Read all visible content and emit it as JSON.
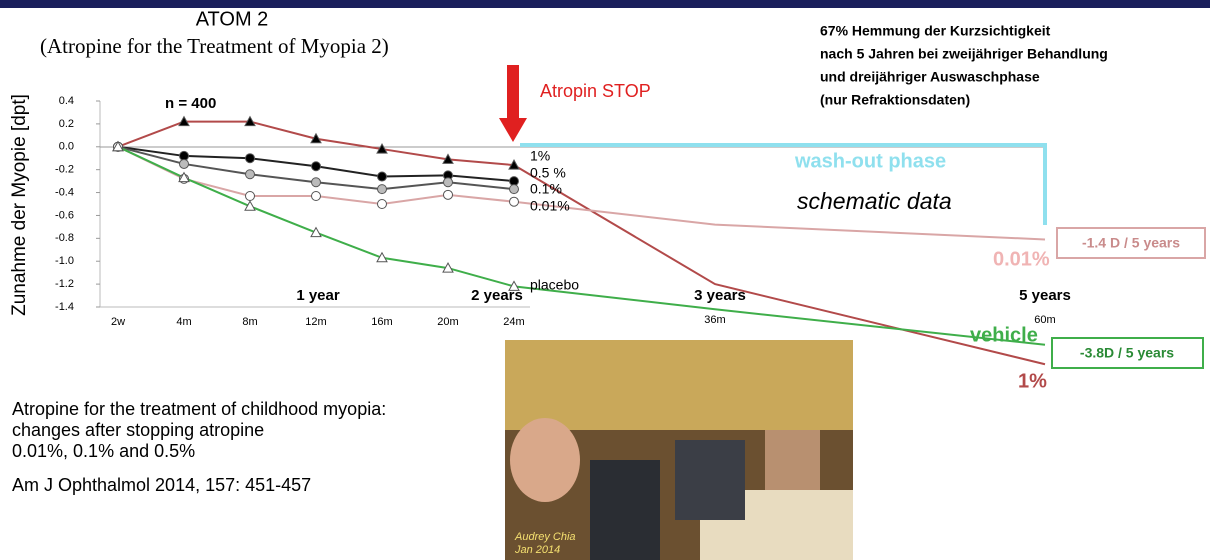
{
  "slide": {
    "title": "ATOM 2",
    "subtitle": "(Atropine for the Treatment of Myopia 2)",
    "summary": [
      "67% Hemmung der Kurzsichtigkeit",
      "nach 5 Jahren bei zweijähriger Behandlung",
      "und dreijähriger Auswaschphase",
      "(nur Refraktionsdaten)"
    ],
    "citation": [
      "Atropine for the treatment of childhood myopia:",
      "changes after stopping atropine",
      "0.01%, 0.1% and 0.5%"
    ],
    "reference": "Am J Ophthalmol 2014, 157: 451-457",
    "photo_caption": [
      "Audrey Chia",
      "Jan 2014"
    ]
  },
  "chart_data": {
    "type": "line",
    "y_label": "Zunahme der Myopie [dpt]",
    "categories": [
      "2w",
      "4m",
      "8m",
      "12m",
      "16m",
      "20m",
      "24m",
      "36m",
      "60m"
    ],
    "ylim": [
      -1.4,
      0.4
    ],
    "yticks": [
      0.4,
      0.2,
      {
        "value": 0,
        "label": "0.0"
      },
      -0.2,
      -0.4,
      -0.6,
      -0.8,
      {
        "value": -1,
        "label": "-1.0"
      },
      -1.2,
      -1.4
    ],
    "series": [
      {
        "name": "1%",
        "color": "#b24a4a",
        "marker": "triangle",
        "marker_fill": "#000000",
        "values": [
          0,
          0.22,
          0.22,
          0.07,
          -0.02,
          -0.11,
          -0.16,
          -1.2,
          -1.9
        ]
      },
      {
        "name": "0.5 %",
        "color": "#222222",
        "marker": "circle",
        "marker_fill": "#000000",
        "values": [
          0,
          -0.08,
          -0.1,
          -0.17,
          -0.26,
          -0.25,
          -0.3,
          null,
          null
        ]
      },
      {
        "name": "0.1%",
        "color": "#555555",
        "marker": "circle",
        "marker_fill": "#bbbbbb",
        "values": [
          0,
          -0.15,
          -0.24,
          -0.31,
          -0.37,
          -0.31,
          -0.37,
          null,
          null
        ]
      },
      {
        "name": "0.01%",
        "color": "#d9a6a6",
        "marker": "circle",
        "marker_fill": "#ffffff",
        "values": [
          0,
          -0.28,
          -0.43,
          -0.43,
          -0.5,
          -0.42,
          -0.48,
          -0.68,
          -0.81
        ]
      },
      {
        "name": "placebo",
        "color": "#3fae4a",
        "marker": "triangle",
        "marker_fill": "#ffffff",
        "values": [
          0,
          -0.27,
          -0.52,
          -0.75,
          -0.97,
          -1.06,
          -1.22,
          -1.42,
          -1.73
        ]
      }
    ],
    "annotations": {
      "sample": "n = 400",
      "stop": "Atropin STOP",
      "washout": "wash-out phase",
      "schematic": "schematic data",
      "years": [
        "1 year",
        "2 years",
        "3 years",
        "5 years"
      ],
      "result_low": "-1.4 D / 5 years",
      "label_low": "0.01%",
      "label_vehicle": "vehicle",
      "result_vehicle": "-3.8D / 5 years",
      "label_high": "1%"
    }
  }
}
